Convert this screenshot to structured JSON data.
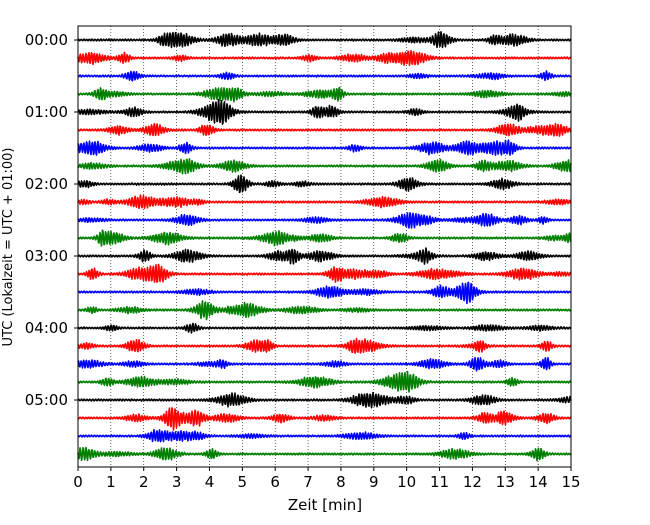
{
  "chart_data": {
    "type": "line",
    "subtype": "helicorder",
    "xlabel": "Zeit  [min]",
    "ylabel": "UTC (Lokalzeit = UTC + 01:00)",
    "xlim": [
      0,
      15
    ],
    "x_ticks": [
      0,
      1,
      2,
      3,
      4,
      5,
      6,
      7,
      8,
      9,
      10,
      11,
      12,
      13,
      14,
      15
    ],
    "x_grid": "dotted vertical lines at each minute",
    "trace_interval_minutes": 15,
    "trace_count": 24,
    "trace_colors_cycle": [
      "#000000",
      "#ff0000",
      "#0000ff",
      "#007f00"
    ],
    "y_ticks": [
      {
        "label": "00:00",
        "trace_index": 0
      },
      {
        "label": "01:00",
        "trace_index": 4
      },
      {
        "label": "02:00",
        "trace_index": 8
      },
      {
        "label": "03:00",
        "trace_index": 12
      },
      {
        "label": "04:00",
        "trace_index": 16
      },
      {
        "label": "05:00",
        "trace_index": 20
      }
    ]
  }
}
